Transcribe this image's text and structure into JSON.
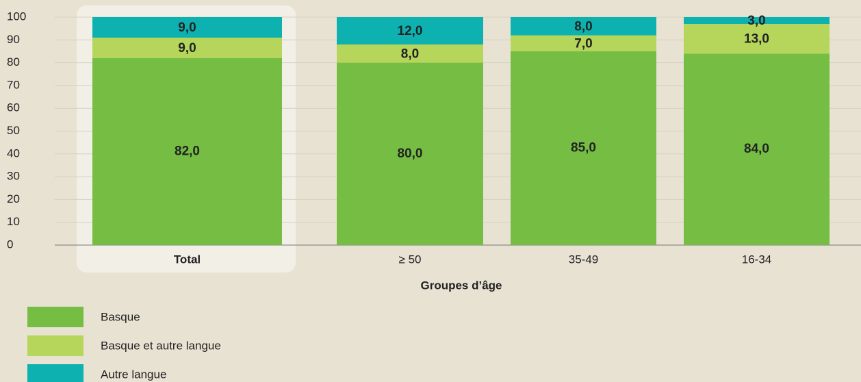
{
  "chart_data": {
    "type": "bar",
    "stacked": true,
    "categories": [
      "Total",
      "≥ 50",
      "35-49",
      "16-34"
    ],
    "xlabel": "Groupes d’âge",
    "series": [
      {
        "name": "Basque",
        "color": "#76bd43",
        "values": [
          82,
          80,
          85,
          84
        ],
        "value_labels": [
          "82,0",
          "80,0",
          "85,0",
          "84,0"
        ]
      },
      {
        "name": "Basque et autre langue",
        "color": "#b5d55b",
        "values": [
          9,
          8,
          7,
          13
        ],
        "value_labels": [
          "9,0",
          "8,0",
          "7,0",
          "13,0"
        ]
      },
      {
        "name": "Autre langue",
        "color": "#0db2b0",
        "values": [
          9,
          12,
          8,
          3
        ],
        "value_labels": [
          "9,0",
          "12,0",
          "8,0",
          "3,0"
        ]
      }
    ],
    "ylim": [
      0,
      100
    ],
    "yticks": [
      0,
      10,
      20,
      30,
      40,
      50,
      60,
      70,
      80,
      90,
      100
    ],
    "grid": true,
    "legend": "bottom-left"
  }
}
